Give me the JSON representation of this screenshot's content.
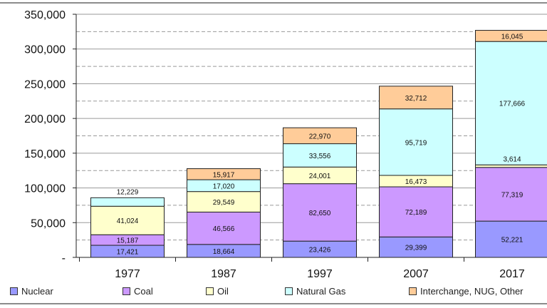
{
  "chart_data": {
    "type": "bar",
    "stacked": true,
    "categories": [
      "1977",
      "1987",
      "1997",
      "2007",
      "2017"
    ],
    "ylim": [
      0,
      350000
    ],
    "yticks": [
      "-",
      "50,000",
      "100,000",
      "150,000",
      "200,000",
      "250,000",
      "300,000",
      "350,000"
    ],
    "grid": true,
    "legend_position": "bottom",
    "series": [
      {
        "name": "Nuclear",
        "color": "#9999ff",
        "values": [
          17421,
          18664,
          23426,
          29399,
          52221
        ],
        "labels": [
          "17,421",
          "18,664",
          "23,426",
          "29,399",
          "52,221"
        ]
      },
      {
        "name": "Coal",
        "color": "#cc99ff",
        "values": [
          15187,
          46566,
          82650,
          72189,
          77319
        ],
        "labels": [
          "15,187",
          "46,566",
          "82,650",
          "72,189",
          "77,319"
        ]
      },
      {
        "name": "Oil",
        "color": "#ffffcc",
        "values": [
          41024,
          29549,
          24001,
          16473,
          3614
        ],
        "labels": [
          "41,024",
          "29,549",
          "24,001",
          "16,473",
          "3,614"
        ]
      },
      {
        "name": "Natural Gas",
        "color": "#ccffff",
        "values": [
          12229,
          17020,
          33556,
          95719,
          177666
        ],
        "labels": [
          "12,229",
          "17,020",
          "33,556",
          "95,719",
          "177,666"
        ]
      },
      {
        "name": "Interchange, NUG, Other",
        "color": "#ffcc99",
        "values": [
          0,
          15917,
          22970,
          32712,
          16045
        ],
        "labels": [
          "",
          "15,917",
          "22,970",
          "32,712",
          "16,045"
        ]
      }
    ]
  }
}
